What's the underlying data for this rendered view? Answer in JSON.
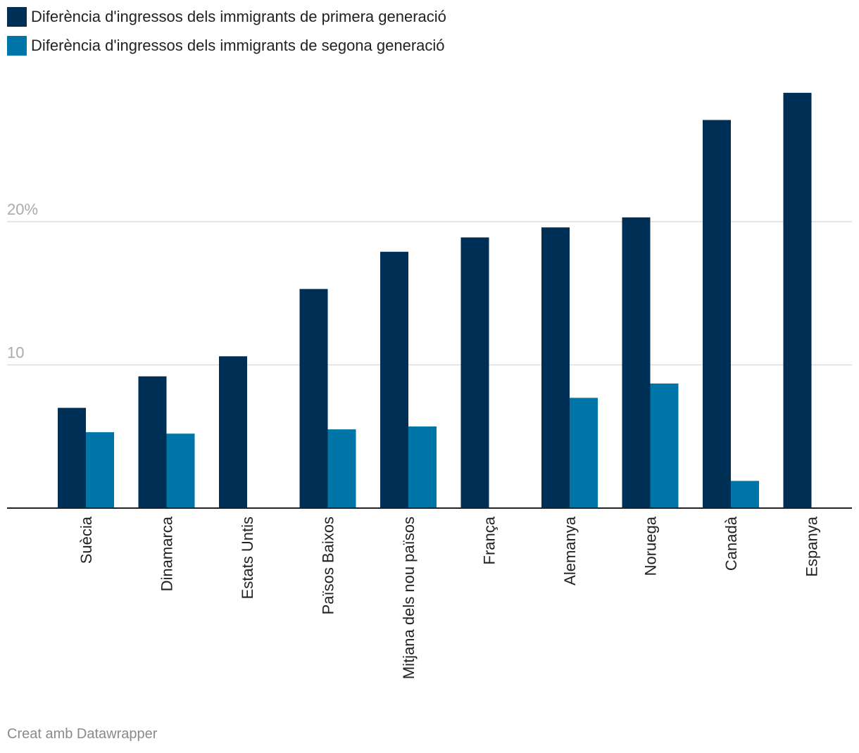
{
  "chart_data": {
    "type": "bar",
    "categories": [
      "Suècia",
      "Dinamarca",
      "Estats Untis",
      "Països Baixos",
      "Mitjana dels nou països",
      "França",
      "Alemanya",
      "Noruega",
      "Canadà",
      "Espanya"
    ],
    "series": [
      {
        "name": "Diferència d'ingressos dels immigrants de primera generació",
        "color": "#002f56",
        "values": [
          7.0,
          9.2,
          10.6,
          15.3,
          17.9,
          18.9,
          19.6,
          20.3,
          27.1,
          29.0
        ]
      },
      {
        "name": "Diferència d'ingressos dels immigrants de segona generació",
        "color": "#0075a8",
        "values": [
          5.3,
          5.2,
          null,
          5.5,
          5.7,
          null,
          7.7,
          8.7,
          1.9,
          null
        ]
      }
    ],
    "y_ticks": [
      {
        "value": 10,
        "label": "10"
      },
      {
        "value": 20,
        "label": "20%"
      }
    ],
    "ylim": [
      0,
      30
    ],
    "grid": true,
    "legend_position": "top-left",
    "gridline_color": "#dddddd",
    "axis_color": "#222222",
    "tick_label_color": "#aaaaaa"
  },
  "footer": {
    "credit": "Creat amb Datawrapper"
  }
}
